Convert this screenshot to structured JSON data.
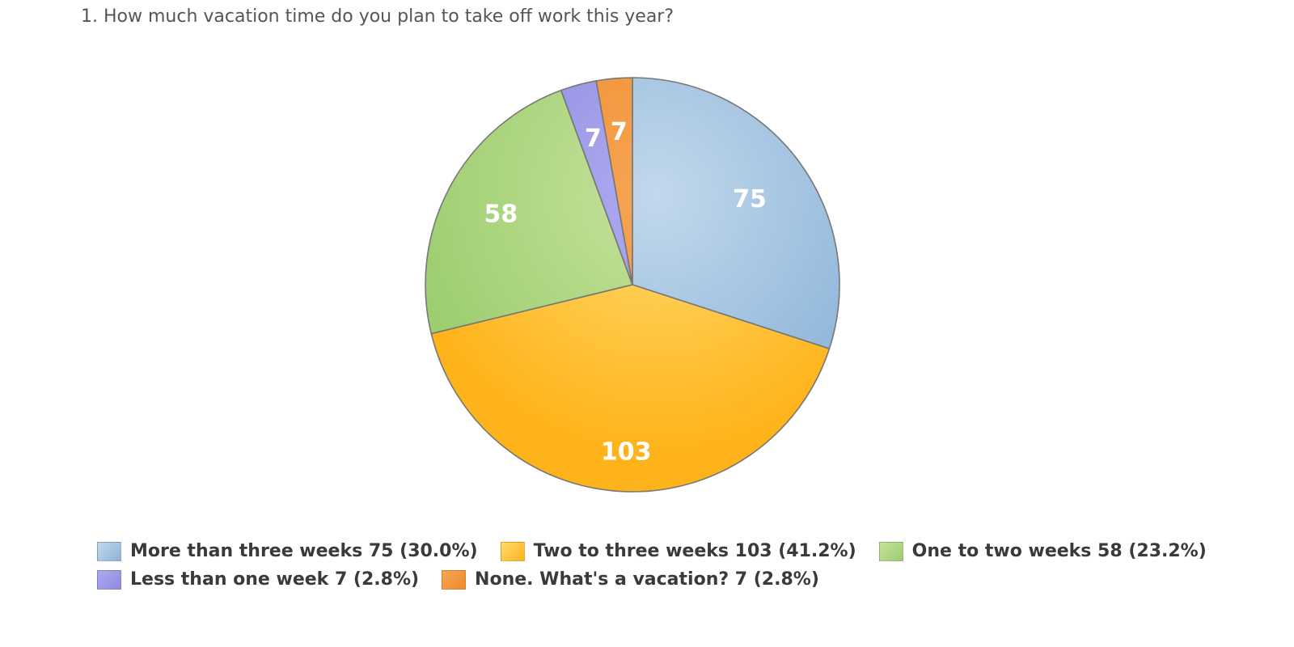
{
  "chart_data": {
    "type": "pie",
    "title": "1. How much vacation time do you plan to take off work this year?",
    "categories": [
      "More than three weeks",
      "Two to three weeks",
      "One to two weeks",
      "Less than one week",
      "None. What's a vacation?"
    ],
    "values": [
      75,
      103,
      58,
      7,
      7
    ],
    "percent_labels": [
      "(30.0%)",
      "(41.2%)",
      "(23.2%)",
      "(2.8%)",
      "(2.8%)"
    ],
    "slice_labels": [
      "75",
      "103",
      "58",
      "7",
      "7"
    ],
    "legend_labels": [
      "More than three weeks 75 (30.0%)",
      "Two to three weeks 103 (41.2%)",
      "One to two weeks 58 (23.2%)",
      "Less than one week 7 (2.8%)",
      "None. What's a vacation? 7 (2.8%)"
    ],
    "colors": [
      "#8cb4d9",
      "#ffb31a",
      "#9ccd6e",
      "#8e8adf",
      "#f08a2a"
    ],
    "colors_light": [
      "#c2d8ec",
      "#ffdb6e",
      "#c6e29c",
      "#aeaaf0",
      "#f5a655"
    ],
    "legend_placement": "bottom",
    "start_angle_deg": 0,
    "direction": "clockwise"
  }
}
